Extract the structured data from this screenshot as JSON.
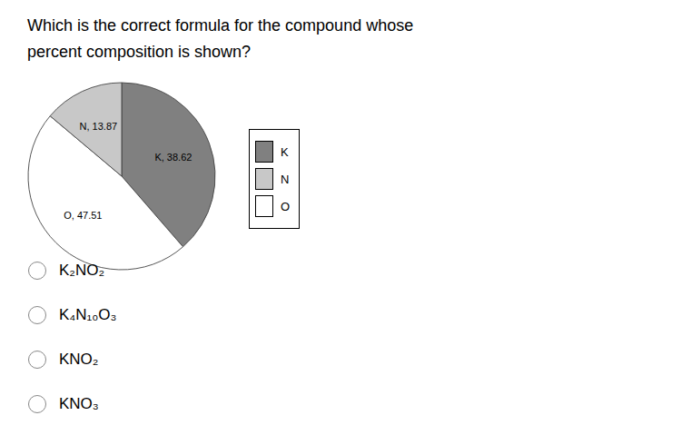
{
  "chart_data": {
    "type": "pie",
    "title": "Which is the correct formula for the compound whose\npercent composition is shown?",
    "categories": [
      "K",
      "O",
      "N"
    ],
    "values": [
      38.62,
      47.51,
      13.87
    ],
    "colors": [
      "#808080",
      "#ffffff",
      "#c8c8c8"
    ],
    "data_labels": true,
    "value_labels": [
      "K, 38.62",
      "O, 47.51",
      "N, 13.87"
    ],
    "legend": "right",
    "legend_items": [
      {
        "name": "K",
        "color": "#808080"
      },
      {
        "name": "N",
        "color": "#c8c8c8"
      },
      {
        "name": "O",
        "color": "#ffffff"
      }
    ],
    "annotations": [
      "K₂NO₂",
      "K₄N₁₀O₃",
      "KNO₂",
      "KNO₃"
    ]
  }
}
